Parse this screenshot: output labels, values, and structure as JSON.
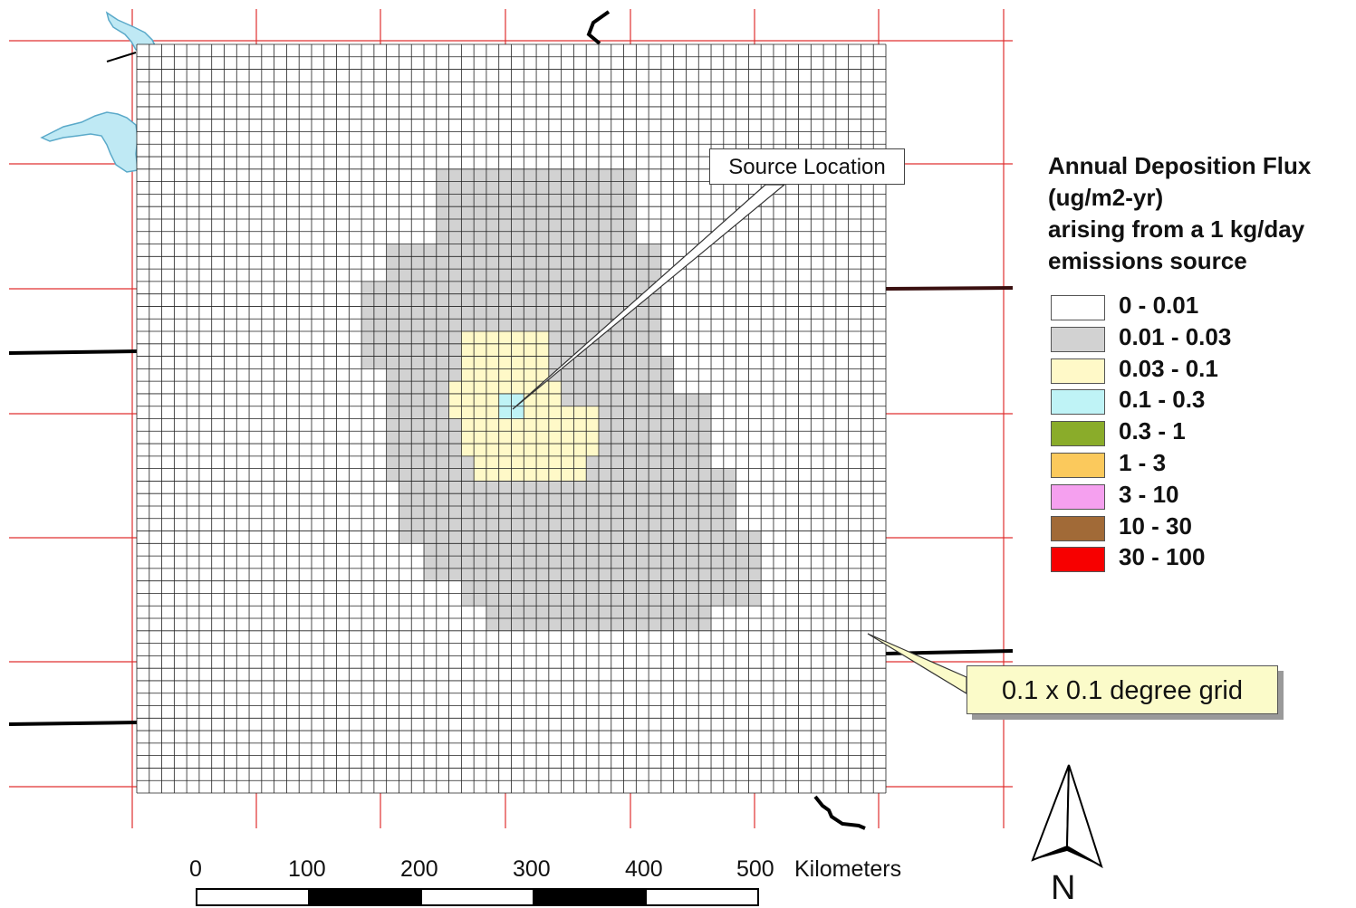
{
  "map": {
    "source_callout": "Source Location",
    "grid_callout": "0.1 x 0.1 degree grid",
    "north_label": "N"
  },
  "legend": {
    "title_lines": [
      "Annual Deposition Flux",
      "(ug/m2-yr)",
      "arising from a 1 kg/day",
      "emissions source"
    ],
    "items": [
      {
        "label": "0 - 0.01",
        "color": "#ffffff"
      },
      {
        "label": "0.01 - 0.03",
        "color": "#d2d2d2"
      },
      {
        "label": "0.03 - 0.1",
        "color": "#fff9c8"
      },
      {
        "label": "0.1 - 0.3",
        "color": "#bff3f6"
      },
      {
        "label": "0.3 - 1",
        "color": "#8aac2a"
      },
      {
        "label": "1 - 3",
        "color": "#fbc95c"
      },
      {
        "label": "3 - 10",
        "color": "#f5a0ef"
      },
      {
        "label": "10 - 30",
        "color": "#a16a37"
      },
      {
        "label": "30 - 100",
        "color": "#f70000"
      }
    ]
  },
  "scale_bar": {
    "ticks": [
      "0",
      "100",
      "200",
      "300",
      "400",
      "500"
    ],
    "unit": "Kilometers"
  },
  "colors": {
    "graticule": "#e03030",
    "grid_line": "#222222",
    "water": "#bfe9f4",
    "border": "#000000"
  }
}
